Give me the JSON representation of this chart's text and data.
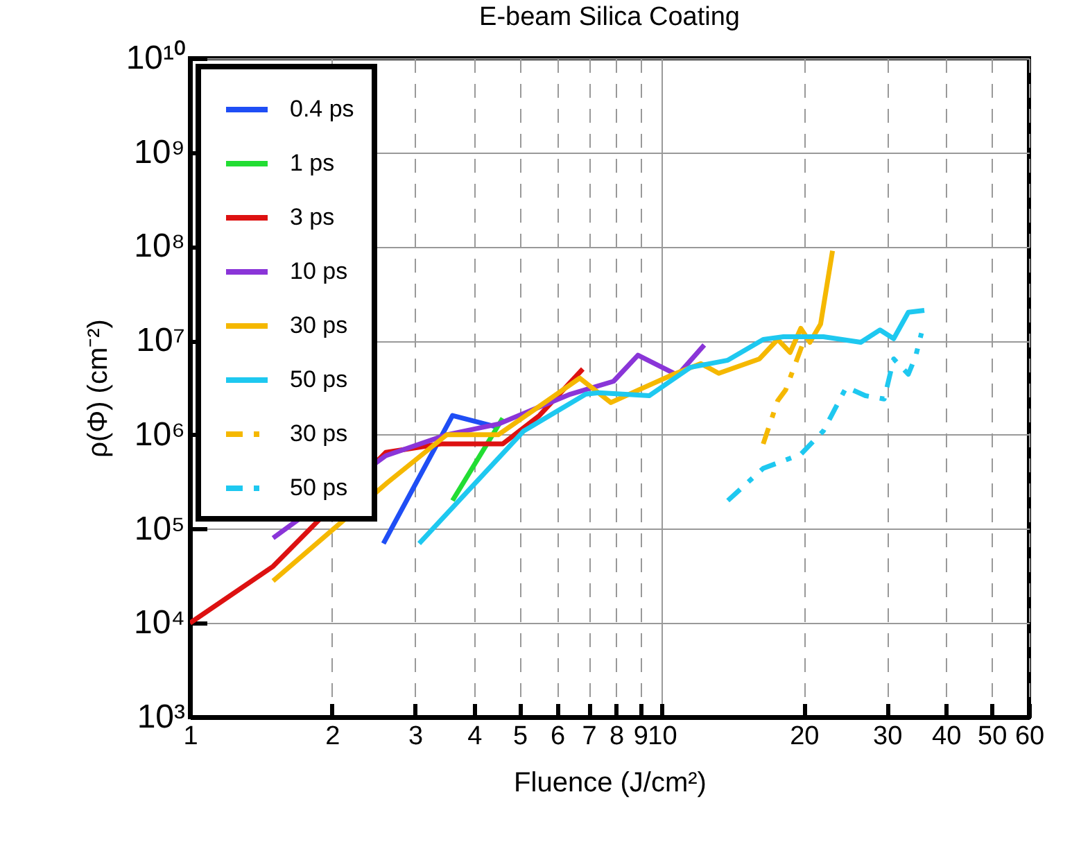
{
  "chart_data": {
    "type": "line",
    "title": "E-beam Silica Coating",
    "xlabel": "Fluence (J/cm²)",
    "ylabel": "ρ(Φ) (cm⁻²)",
    "log": "xy",
    "grid": true,
    "legend": "top left",
    "xlim": [
      1,
      60
    ],
    "xticks": [
      1,
      2,
      3,
      4,
      5,
      6,
      7,
      8,
      9,
      10,
      20,
      30,
      40,
      50,
      60
    ],
    "ylim": [
      1000,
      10000000000
    ],
    "yticks": [
      {
        "value": 1000,
        "label": "10³"
      },
      {
        "value": 10000,
        "label": "10⁴"
      },
      {
        "value": 100000,
        "label": "10⁵"
      },
      {
        "value": 1000000,
        "label": "10⁶"
      },
      {
        "value": 10000000,
        "label": "10⁷"
      },
      {
        "value": 100000000,
        "label": "10⁸"
      },
      {
        "value": 1000000000,
        "label": "10⁹"
      },
      {
        "value": 10000000000,
        "label": "10¹⁰"
      }
    ],
    "series": [
      {
        "name": "0.4 ps",
        "color": "#1f4ef5",
        "line_style": "solid",
        "x": [
          2.57,
          3.6,
          4.5
        ],
        "values": [
          70000,
          1600000,
          1200000
        ]
      },
      {
        "name": "1 ps",
        "color": "#22dd33",
        "line_style": "solid",
        "x": [
          3.6,
          4.6
        ],
        "values": [
          200000,
          1500000
        ]
      },
      {
        "name": "3 ps",
        "color": "#dd1111",
        "line_style": "solid",
        "x": [
          1,
          1.5,
          2.6,
          3.4,
          4.6,
          5.5,
          6.8
        ],
        "values": [
          10000,
          40000,
          650000,
          800000,
          800000,
          1600000,
          5000000
        ]
      },
      {
        "name": "10 ps",
        "color": "#8a35d8",
        "line_style": "solid",
        "x": [
          1.5,
          2.6,
          3.5,
          4.5,
          6.4,
          7.9,
          8.9,
          10.8,
          12.3
        ],
        "values": [
          80000,
          600000,
          1000000,
          1300000,
          2700000,
          3700000,
          7000000,
          4300000,
          9000000
        ]
      },
      {
        "name": "30 ps",
        "color": "#f5b800",
        "line_style": "solid",
        "x": [
          1.5,
          2.62,
          3.5,
          4.5,
          6.7,
          7.8,
          8.8,
          10.6,
          12.1,
          13.2,
          16.1,
          17.6,
          18.7,
          19.7,
          20.6,
          21.7,
          23
        ],
        "values": [
          28000,
          310000,
          1000000,
          1000000,
          4000000,
          2200000,
          2900000,
          4400000,
          5700000,
          4500000,
          6400000,
          10300000,
          7500000,
          13500000,
          9600000,
          15000000,
          90000000
        ]
      },
      {
        "name": "50 ps",
        "color": "#1ec8f0",
        "line_style": "solid",
        "x": [
          3.06,
          5.1,
          6.9,
          7.35,
          9.4,
          11.5,
          13.8,
          16.4,
          18.1,
          22,
          26.4,
          29,
          31,
          33.3,
          36
        ],
        "values": [
          70000,
          1100000,
          2700000,
          2800000,
          2600000,
          5200000,
          6200000,
          10300000,
          11000000,
          11000000,
          9600000,
          13000000,
          10500000,
          20000000,
          21000000
        ]
      },
      {
        "name": "30 ps",
        "color": "#f5b800",
        "line_style": "dashed",
        "x": [
          16.4,
          17.6,
          18.3,
          20
        ],
        "values": [
          800000,
          2300000,
          3000000,
          10000000
        ]
      },
      {
        "name": "50 ps",
        "color": "#1ec8f0",
        "line_style": "dashed",
        "x": [
          13.8,
          16.4,
          19.7,
          22,
          24.6,
          27,
          29.6,
          31,
          33.3,
          34.5,
          35.5
        ],
        "values": [
          200000,
          440000,
          620000,
          1100000,
          3200000,
          2600000,
          2400000,
          6400000,
          4400000,
          6800000,
          12000000
        ]
      }
    ]
  }
}
